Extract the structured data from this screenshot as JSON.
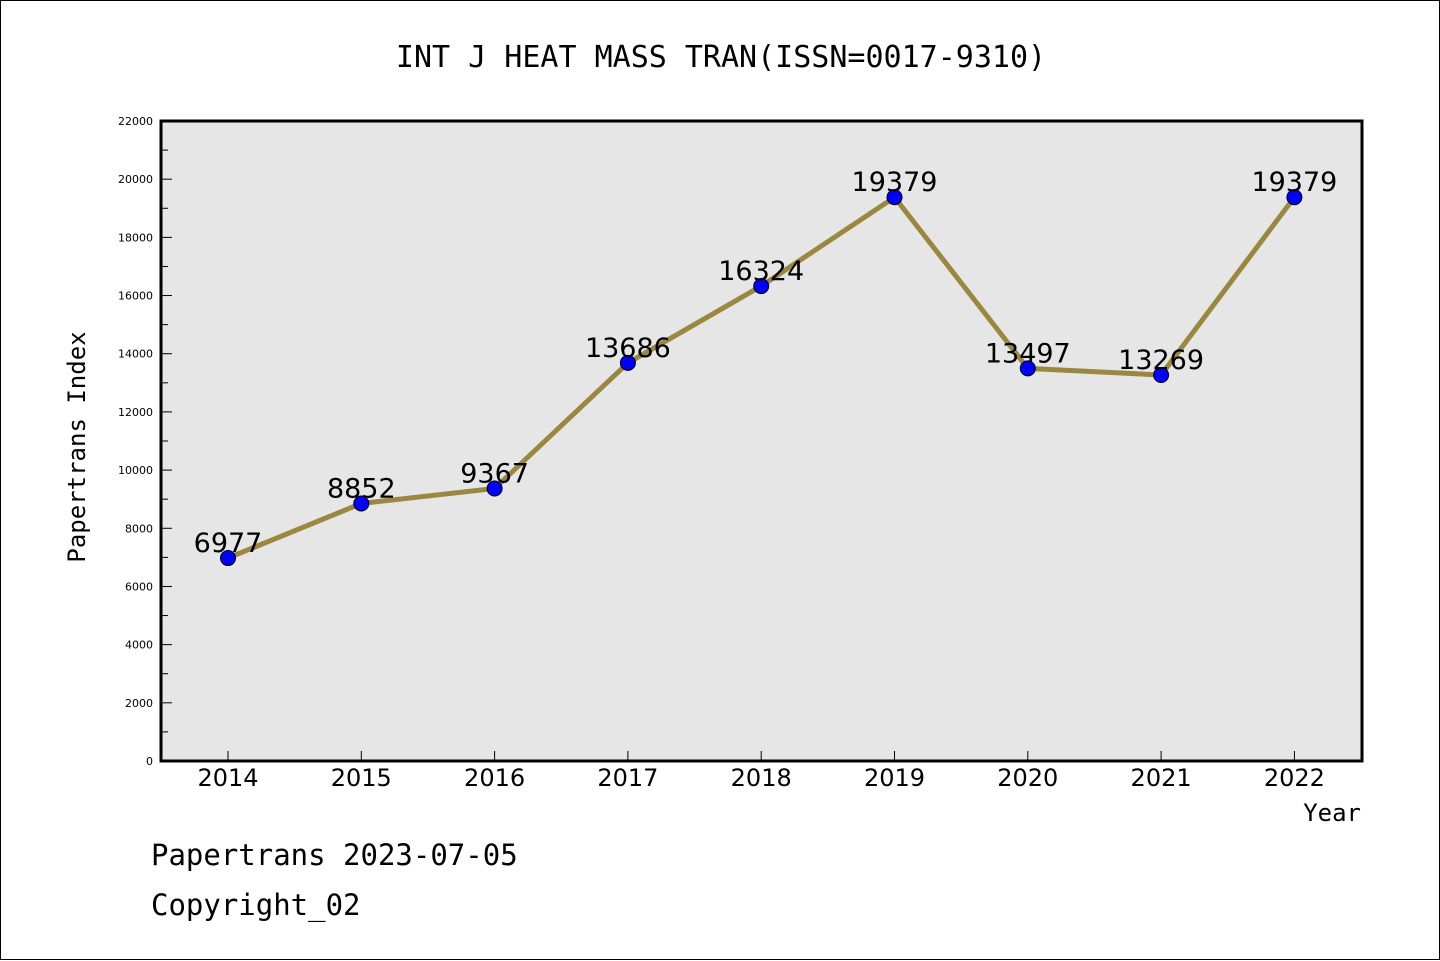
{
  "chart_data": {
    "type": "line",
    "title": "INT J HEAT MASS TRAN(ISSN=0017-9310)",
    "xlabel": "Year",
    "ylabel": "Papertrans Index",
    "categories": [
      "2014",
      "2015",
      "2016",
      "2017",
      "2018",
      "2019",
      "2020",
      "2021",
      "2022"
    ],
    "values": [
      6977,
      8852,
      9367,
      13686,
      16324,
      19379,
      13497,
      13269,
      19379
    ],
    "ylim": [
      0,
      22000
    ],
    "yticks": [
      0,
      2000,
      4000,
      6000,
      8000,
      10000,
      12000,
      14000,
      16000,
      18000,
      20000,
      22000
    ],
    "data_labels": true,
    "grid": false,
    "line_color": "#9b8840",
    "marker_color": "#0000ff",
    "plot_background": "#e6e6e6"
  },
  "footer": {
    "line1": "Papertrans 2023-07-05",
    "line2": "Copyright_02"
  }
}
